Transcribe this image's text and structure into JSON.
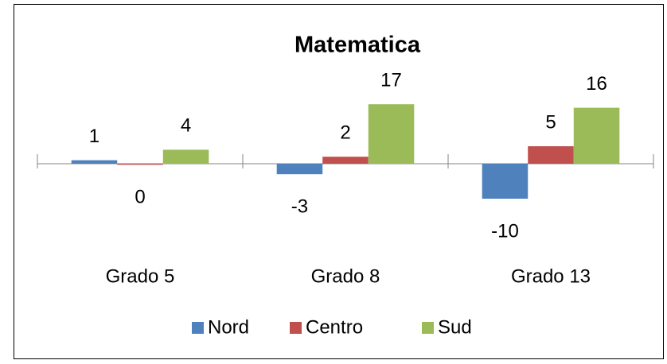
{
  "chart_data": {
    "type": "bar",
    "title": "Matematica",
    "categories": [
      "Grado 5",
      "Grado 8",
      "Grado 13"
    ],
    "series": [
      {
        "name": "Nord",
        "color": "#4f81bd",
        "values": [
          1,
          -3,
          -10
        ]
      },
      {
        "name": "Centro",
        "color": "#c0504d",
        "values": [
          -0.3,
          2,
          5
        ],
        "value_labels": [
          "0",
          "2",
          "5"
        ]
      },
      {
        "name": "Sud",
        "color": "#9bbb59",
        "values": [
          4,
          17,
          16
        ]
      }
    ],
    "ylim": [
      -20,
      20
    ],
    "legend": "bottom"
  }
}
